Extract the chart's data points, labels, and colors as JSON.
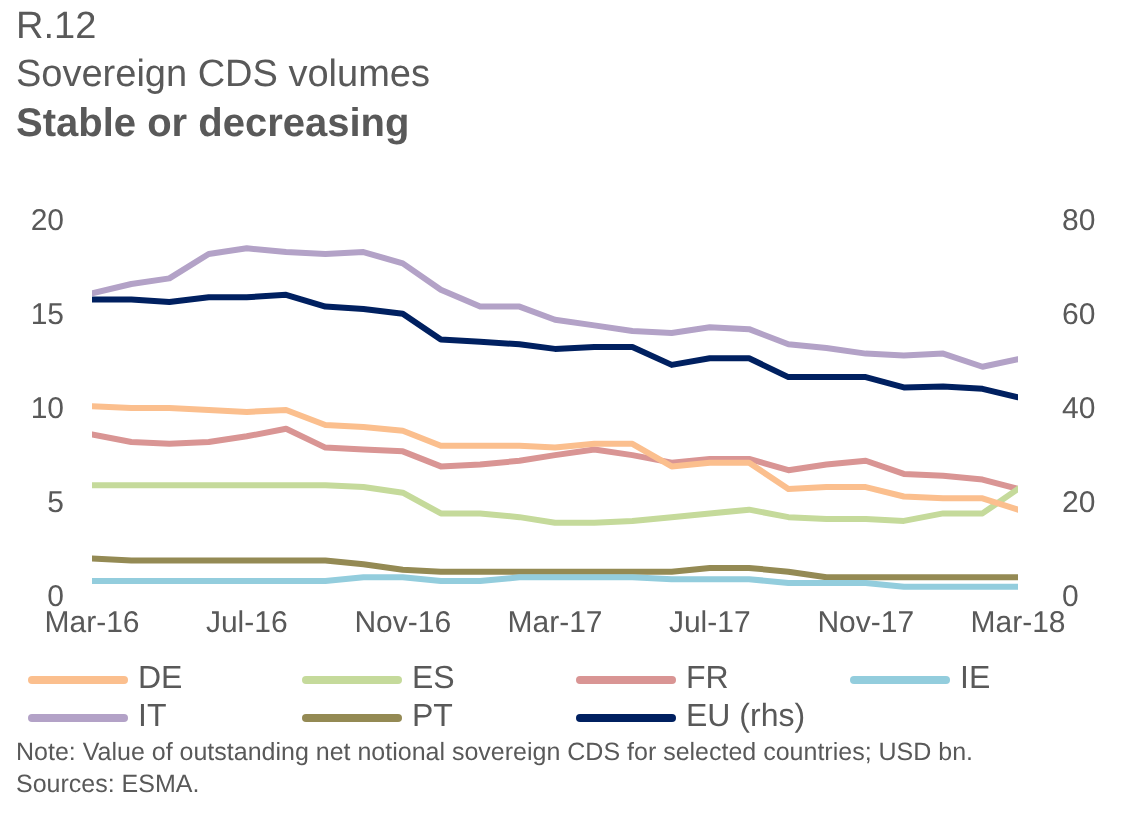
{
  "chart_data": {
    "type": "line",
    "title": "Stable or decreasing",
    "subtitle": "Sovereign CDS volumes",
    "annotations": [
      "R.12",
      "Note: Value of outstanding net notional sovereign CDS for selected countries; USD bn.",
      "Sources: ESMA."
    ],
    "x": [
      "2016-03",
      "2016-04",
      "2016-05",
      "2016-06",
      "2016-07",
      "2016-08",
      "2016-09",
      "2016-10",
      "2016-11",
      "2016-12",
      "2017-01",
      "2017-02",
      "2017-03",
      "2017-04",
      "2017-05",
      "2017-06",
      "2017-07",
      "2017-08",
      "2017-09",
      "2017-10",
      "2017-11",
      "2017-12",
      "2018-01",
      "2018-02",
      "2018-03"
    ],
    "series": [
      {
        "name": "DE",
        "color": "#fbbf8e",
        "values": [
          10.2,
          10.1,
          10.1,
          10.0,
          9.9,
          10.0,
          9.2,
          9.1,
          8.9,
          8.1,
          8.1,
          8.1,
          8.0,
          8.2,
          8.2,
          7.0,
          7.2,
          7.2,
          5.8,
          5.9,
          5.9,
          5.4,
          5.3,
          5.3,
          4.7
        ]
      },
      {
        "name": "ES",
        "color": "#c5da9b",
        "values": [
          6.0,
          6.0,
          6.0,
          6.0,
          6.0,
          6.0,
          6.0,
          5.9,
          5.6,
          4.5,
          4.5,
          4.3,
          4.0,
          4.0,
          4.1,
          4.3,
          4.5,
          4.7,
          4.3,
          4.2,
          4.2,
          4.1,
          4.5,
          4.5,
          5.8
        ]
      },
      {
        "name": "FR",
        "color": "#d99594",
        "values": [
          8.7,
          8.3,
          8.2,
          8.3,
          8.6,
          9.0,
          8.0,
          7.9,
          7.8,
          7.0,
          7.1,
          7.3,
          7.6,
          7.9,
          7.6,
          7.2,
          7.4,
          7.4,
          6.8,
          7.1,
          7.3,
          6.6,
          6.5,
          6.3,
          5.8
        ]
      },
      {
        "name": "IE",
        "color": "#93cddd",
        "values": [
          0.9,
          0.9,
          0.9,
          0.9,
          0.9,
          0.9,
          0.9,
          1.1,
          1.1,
          0.9,
          0.9,
          1.1,
          1.1,
          1.1,
          1.1,
          1.0,
          1.0,
          1.0,
          0.8,
          0.8,
          0.8,
          0.6,
          0.6,
          0.6,
          0.6
        ]
      },
      {
        "name": "IT",
        "color": "#b3a2c7",
        "values": [
          16.2,
          16.7,
          17.0,
          18.3,
          18.6,
          18.4,
          18.3,
          18.4,
          17.8,
          16.4,
          15.5,
          15.5,
          14.8,
          14.5,
          14.2,
          14.1,
          14.4,
          14.3,
          13.5,
          13.3,
          13.0,
          12.9,
          13.0,
          12.3,
          12.7
        ]
      },
      {
        "name": "PT",
        "color": "#948a54",
        "values": [
          2.1,
          2.0,
          2.0,
          2.0,
          2.0,
          2.0,
          2.0,
          1.8,
          1.5,
          1.4,
          1.4,
          1.4,
          1.4,
          1.4,
          1.4,
          1.4,
          1.6,
          1.6,
          1.4,
          1.1,
          1.1,
          1.1,
          1.1,
          1.1,
          1.1
        ]
      },
      {
        "name": "EU (rhs)",
        "color": "#002060",
        "axis": "y2",
        "values": [
          63.5,
          63.5,
          63,
          64,
          64,
          64.5,
          62,
          61.5,
          60.5,
          55,
          54.5,
          54,
          53,
          53.4,
          53.4,
          49.6,
          51,
          51,
          47,
          47,
          47,
          44.8,
          45,
          44.5,
          42.7
        ]
      }
    ],
    "xlim": [
      "2016-03",
      "2018-03"
    ],
    "xticks": [
      {
        "value": "2016-03",
        "label": "Mar-16"
      },
      {
        "value": "2016-07",
        "label": "Jul-16"
      },
      {
        "value": "2016-11",
        "label": "Nov-16"
      },
      {
        "value": "2017-03",
        "label": "Mar-17"
      },
      {
        "value": "2017-07",
        "label": "Jul-17"
      },
      {
        "value": "2017-11",
        "label": "Nov-17"
      },
      {
        "value": "2018-03",
        "label": "Mar-18"
      }
    ],
    "ylim": [
      0,
      20
    ],
    "yticks": [
      0,
      5,
      10,
      15,
      20
    ],
    "y2lim": [
      0,
      80
    ],
    "y2ticks": [
      0,
      20,
      40,
      60,
      80
    ],
    "grid": false,
    "legend": "bottom",
    "marker": "none",
    "line_style": "solid"
  }
}
